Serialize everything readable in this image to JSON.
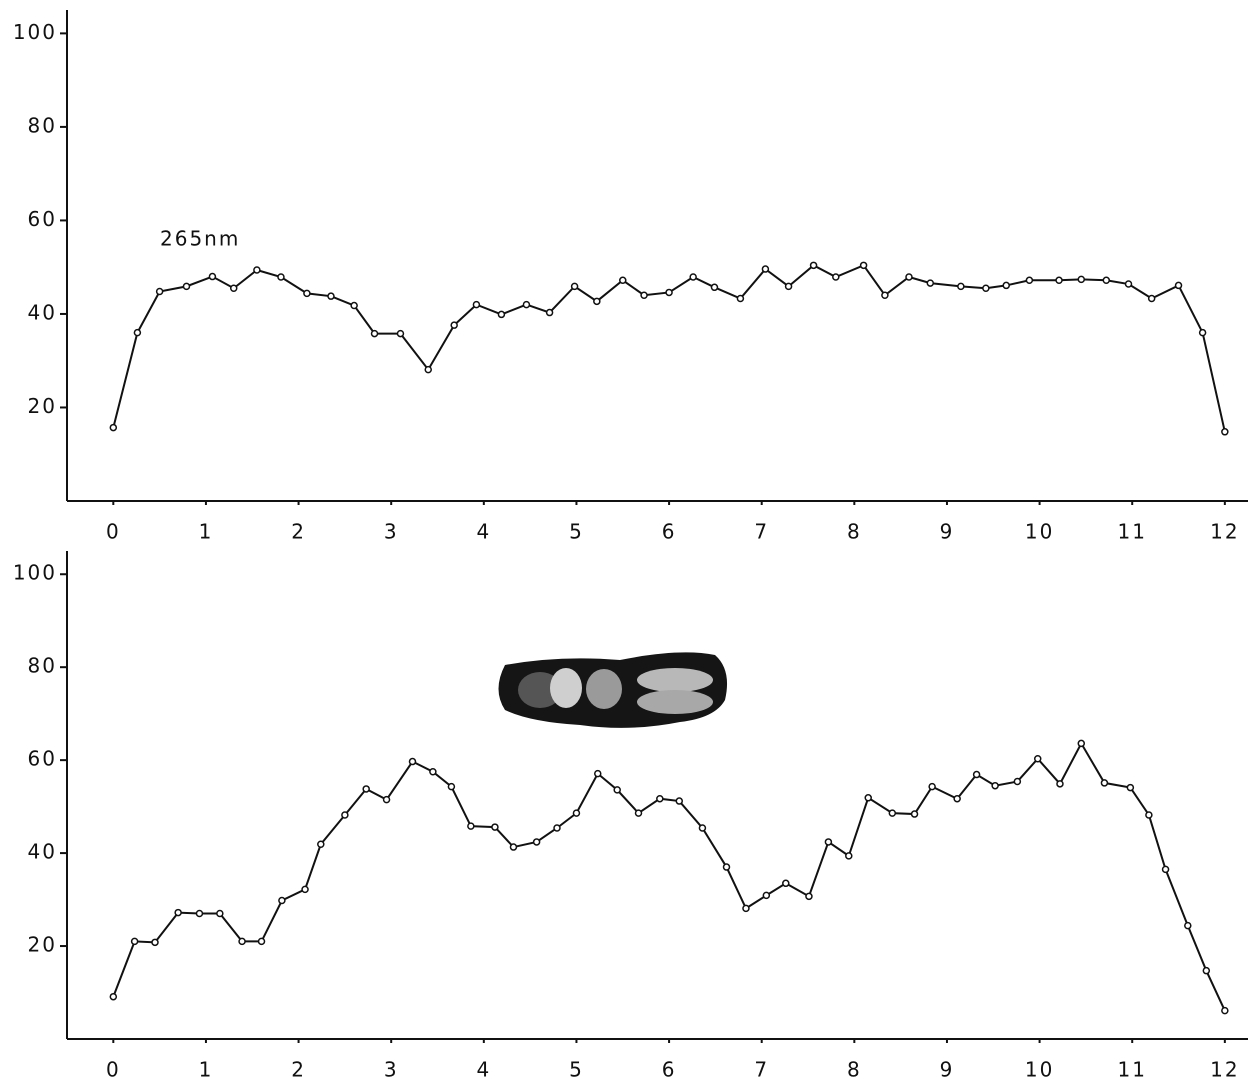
{
  "chart_data": [
    {
      "type": "line",
      "annotation": "265nm",
      "x": [
        0,
        0.26,
        0.5,
        0.79,
        1.07,
        1.3,
        1.55,
        1.81,
        2.09,
        2.35,
        2.6,
        2.82,
        3.1,
        3.4,
        3.68,
        3.92,
        4.19,
        4.46,
        4.71,
        4.98,
        5.22,
        5.5,
        5.73,
        6.0,
        6.26,
        6.49,
        6.77,
        7.04,
        7.29,
        7.56,
        7.8,
        8.1,
        8.33,
        8.59,
        8.82,
        9.15,
        9.42,
        9.64,
        9.89,
        10.21,
        10.45,
        10.72,
        10.96,
        11.21,
        11.5,
        11.76,
        12
      ],
      "values": [
        15.7,
        36,
        44.8,
        45.9,
        48,
        45.5,
        49.4,
        47.9,
        44.4,
        43.8,
        41.8,
        35.8,
        35.8,
        28.1,
        37.6,
        42,
        39.9,
        42,
        40.3,
        45.9,
        42.7,
        47.2,
        44,
        44.6,
        47.9,
        45.7,
        43.3,
        49.6,
        45.9,
        50.4,
        47.9,
        50.4,
        44,
        47.9,
        46.6,
        45.9,
        45.5,
        46.1,
        47.2,
        47.2,
        47.4,
        47.2,
        46.4,
        43.3,
        46.1,
        36,
        14.8
      ],
      "color": "#111111",
      "xlim": [
        -0.5,
        12.25
      ],
      "xticks": [
        0,
        1,
        2,
        3,
        4,
        5,
        6,
        7,
        8,
        9,
        10,
        11,
        12
      ],
      "ylim": [
        0,
        105
      ],
      "yticks": [
        20,
        40,
        60,
        80,
        100
      ]
    },
    {
      "type": "line",
      "x": [
        0,
        0.23,
        0.45,
        0.7,
        0.93,
        1.15,
        1.39,
        1.6,
        1.82,
        2.07,
        2.24,
        2.5,
        2.73,
        2.95,
        3.23,
        3.45,
        3.65,
        3.86,
        4.12,
        4.32,
        4.57,
        4.79,
        5.0,
        5.23,
        5.44,
        5.67,
        5.9,
        6.11,
        6.36,
        6.62,
        6.83,
        7.05,
        7.26,
        7.51,
        7.72,
        7.94,
        8.15,
        8.41,
        8.65,
        8.84,
        9.11,
        9.32,
        9.52,
        9.76,
        9.98,
        10.22,
        10.45,
        10.7,
        10.98,
        11.18,
        11.36,
        11.6,
        11.8,
        12
      ],
      "values": [
        9.1,
        21,
        20.8,
        27.2,
        27,
        27,
        21,
        21,
        29.8,
        32.2,
        41.9,
        48.2,
        53.8,
        51.5,
        59.7,
        57.5,
        54.3,
        45.8,
        45.6,
        41.3,
        42.4,
        45.4,
        48.6,
        57.1,
        53.6,
        48.6,
        51.7,
        51.2,
        45.4,
        37,
        28.1,
        30.9,
        33.5,
        30.7,
        42.4,
        39.4,
        51.9,
        48.6,
        48.4,
        54.3,
        51.7,
        56.9,
        54.5,
        55.4,
        60.3,
        54.9,
        63.6,
        55.1,
        54.1,
        48.2,
        36.5,
        24.4,
        14.7,
        6.1
      ],
      "color": "#111111",
      "xlim": [
        -0.5,
        12.25
      ],
      "xticks": [
        0,
        1,
        2,
        3,
        4,
        5,
        6,
        7,
        8,
        9,
        10,
        11,
        12
      ],
      "ylim": [
        0,
        105
      ],
      "yticks": [
        20,
        40,
        60,
        80,
        100
      ]
    }
  ]
}
